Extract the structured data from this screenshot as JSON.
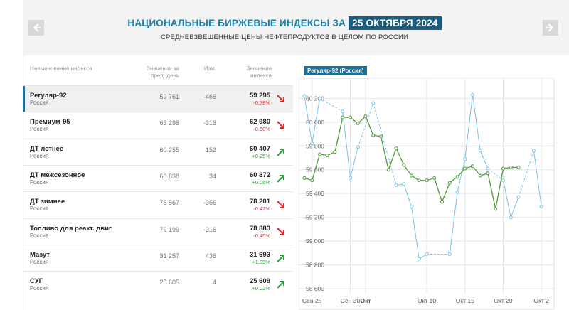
{
  "header": {
    "title": "НАЦИОНАЛЬНЫЕ БИРЖЕВЫЕ ИНДЕКСЫ ЗА",
    "date": "25 ОКТЯБРЯ 2024",
    "subtitle": "СРЕДНЕВЗВЕШЕННЫЕ ЦЕНЫ НЕФТЕПРОДУКТОВ В ЦЕЛОМ ПО РОССИИ",
    "prev_icon": "arrow-left-icon",
    "next_icon": "arrow-right-icon"
  },
  "table": {
    "columns": {
      "name": "Наименование индекса",
      "prev": "Значение за пред. день",
      "change": "Изм.",
      "value": "Значение индекса"
    },
    "rows": [
      {
        "name": "Регуляр-92",
        "region": "Россия",
        "prev": "59 761",
        "change": "-466",
        "value": "59 295",
        "pct": "-0.78%",
        "trend": "down",
        "selected": true
      },
      {
        "name": "Премиум-95",
        "region": "Россия",
        "prev": "63 298",
        "change": "-318",
        "value": "62 980",
        "pct": "-0.50%",
        "trend": "down",
        "selected": false
      },
      {
        "name": "ДТ летнее",
        "region": "Россия",
        "prev": "60 255",
        "change": "152",
        "value": "60 407",
        "pct": "+0.25%",
        "trend": "up",
        "selected": false
      },
      {
        "name": "ДТ межсезонное",
        "region": "Россия",
        "prev": "60 838",
        "change": "34",
        "value": "60 872",
        "pct": "+0.06%",
        "trend": "up",
        "selected": false
      },
      {
        "name": "ДТ зимнее",
        "region": "Россия",
        "prev": "78 567",
        "change": "-366",
        "value": "78 201",
        "pct": "-0.47%",
        "trend": "down",
        "selected": false
      },
      {
        "name": "Топливо для реакт. двиг.",
        "region": "Россия",
        "prev": "79 199",
        "change": "-316",
        "value": "78 883",
        "pct": "-0.40%",
        "trend": "down",
        "selected": false
      },
      {
        "name": "Мазут",
        "region": "Россия",
        "prev": "31 257",
        "change": "436",
        "value": "31 693",
        "pct": "+1.39%",
        "trend": "up",
        "selected": false
      },
      {
        "name": "СУГ",
        "region": "Россия",
        "prev": "25 605",
        "change": "4",
        "value": "25 609",
        "pct": "+0.02%",
        "trend": "up",
        "selected": false
      }
    ]
  },
  "colors": {
    "accent": "#1b6f95",
    "down": "#d9262a",
    "up": "#2e9a3a",
    "series_blue": "#7cc3e6",
    "series_green": "#4f9a3c"
  },
  "chart_label": "Регуляр-92 (Россия)",
  "chart_data": {
    "type": "line",
    "ylim": [
      58600,
      60250
    ],
    "y_ticks": [
      58600,
      58800,
      59000,
      59200,
      59400,
      59600,
      59800,
      60000,
      60200
    ],
    "y_tick_labels": [
      "58 600",
      "58 800",
      "59 000",
      "59 200",
      "59 400",
      "59 600",
      "59 800",
      "60 000",
      "60 200"
    ],
    "x_ticks": [
      {
        "label": "Сен 25",
        "x": 1,
        "bold": false
      },
      {
        "label": "Сен 30",
        "x": 6,
        "bold": false
      },
      {
        "label": "Окт",
        "x": 8,
        "bold": true
      },
      {
        "label": "Окт 10",
        "x": 16,
        "bold": false
      },
      {
        "label": "Окт 15",
        "x": 21,
        "bold": false
      },
      {
        "label": "Окт 20",
        "x": 26,
        "bold": false
      },
      {
        "label": "Окт 2",
        "x": 31,
        "bold": false
      }
    ],
    "xlim": [
      0,
      32
    ],
    "series": [
      {
        "color": "#7cc3e6",
        "points": [
          [
            0,
            60220
          ],
          [
            1,
            59820
          ],
          [
            2,
            60200
          ],
          [
            5,
            60090
          ],
          [
            6,
            59530
          ],
          [
            7,
            59790
          ],
          [
            9,
            60160
          ],
          [
            12,
            59470
          ],
          [
            13,
            59480
          ],
          [
            14,
            59290
          ],
          [
            15,
            58850
          ],
          [
            16,
            58890
          ],
          [
            19,
            58890
          ],
          [
            20,
            59410
          ],
          [
            21,
            59690
          ],
          [
            22,
            60230
          ],
          [
            23,
            59760
          ],
          [
            24,
            59610
          ],
          [
            26,
            59510
          ],
          [
            27,
            59200
          ],
          [
            28,
            59370
          ],
          [
            30,
            59760
          ],
          [
            31,
            59290
          ]
        ]
      },
      {
        "color": "#4f9a3c",
        "points": [
          [
            0,
            59530
          ],
          [
            1,
            59510
          ],
          [
            2,
            59730
          ],
          [
            3,
            59720
          ],
          [
            4,
            59750
          ],
          [
            5,
            60040
          ],
          [
            6,
            60040
          ],
          [
            7,
            59990
          ],
          [
            8,
            60050
          ],
          [
            9,
            59890
          ],
          [
            10,
            59880
          ],
          [
            11,
            59600
          ],
          [
            12,
            59780
          ],
          [
            13,
            59640
          ],
          [
            14,
            59550
          ],
          [
            15,
            59510
          ],
          [
            16,
            59510
          ],
          [
            17,
            59530
          ],
          [
            18,
            59330
          ],
          [
            19,
            59490
          ],
          [
            20,
            59540
          ],
          [
            21,
            59610
          ],
          [
            22,
            59630
          ],
          [
            23,
            59550
          ],
          [
            24,
            59570
          ],
          [
            25,
            59270
          ],
          [
            26,
            59610
          ],
          [
            27,
            59620
          ],
          [
            28,
            59620
          ]
        ]
      }
    ]
  }
}
